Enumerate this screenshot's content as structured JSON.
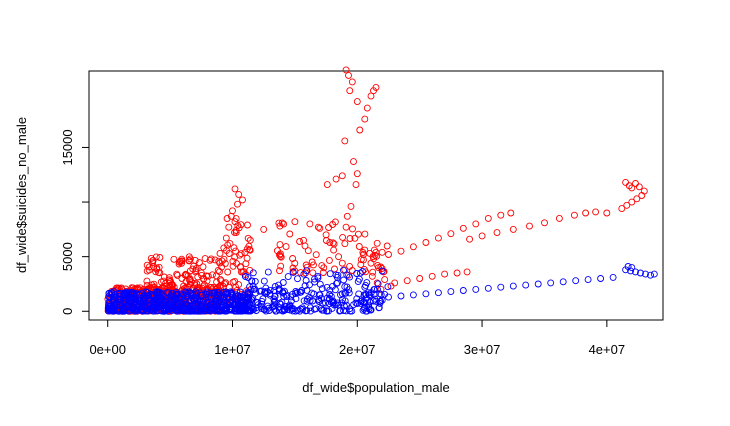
{
  "chart_data": {
    "type": "scatter",
    "title": "",
    "xlabel": "df_wide$population_male",
    "ylabel": "df_wide$suicides_no_male",
    "xlim": [
      -1500000,
      44500000
    ],
    "ylim": [
      -800,
      22000
    ],
    "x_ticks": [
      0,
      10000000,
      20000000,
      30000000,
      40000000
    ],
    "x_tick_labels": [
      "0e+00",
      "1e+07",
      "2e+07",
      "3e+07",
      "4e+07"
    ],
    "y_ticks": [
      0,
      5000,
      15000
    ],
    "y_tick_labels": [
      "0",
      "5000",
      "15000"
    ],
    "y_extra_ticks": [
      10000
    ],
    "grid": false,
    "legend": "none",
    "series": [
      {
        "color": "#ff0000",
        "clusters": [
          {
            "x": [
              0,
              9000000
            ],
            "y": [
              0,
              2200
            ],
            "n": 520
          },
          {
            "x": [
              3000000,
              9500000
            ],
            "y": [
              1500,
              5000
            ],
            "n": 160
          },
          {
            "x": [
              9500000,
              11500000
            ],
            "y": [
              1000,
              8500
            ],
            "n": 60
          },
          {
            "x": [
              13500000,
              22500000
            ],
            "y": [
              3500,
              8200
            ],
            "n": 70
          }
        ],
        "points": [
          {
            "x": 10200000,
            "y": 11200
          },
          {
            "x": 10500000,
            "y": 10700
          },
          {
            "x": 10800000,
            "y": 10200
          },
          {
            "x": 10400000,
            "y": 9800
          },
          {
            "x": 10000000,
            "y": 9200
          },
          {
            "x": 9900000,
            "y": 8700
          },
          {
            "x": 10200000,
            "y": 8200
          },
          {
            "x": 9700000,
            "y": 7700
          },
          {
            "x": 10300000,
            "y": 7200
          },
          {
            "x": 9500000,
            "y": 6700
          },
          {
            "x": 9800000,
            "y": 6200
          },
          {
            "x": 9300000,
            "y": 5800
          },
          {
            "x": 9000000,
            "y": 5300
          },
          {
            "x": 11200000,
            "y": 7900
          },
          {
            "x": 12500000,
            "y": 7500
          },
          {
            "x": 13800000,
            "y": 7800
          },
          {
            "x": 15000000,
            "y": 8200
          },
          {
            "x": 16200000,
            "y": 8000
          },
          {
            "x": 17000000,
            "y": 7600
          },
          {
            "x": 17500000,
            "y": 7000
          },
          {
            "x": 17800000,
            "y": 6300
          },
          {
            "x": 18100000,
            "y": 5600
          },
          {
            "x": 18500000,
            "y": 5000
          },
          {
            "x": 18800000,
            "y": 4400
          },
          {
            "x": 19000000,
            "y": 3800
          },
          {
            "x": 19300000,
            "y": 3300
          },
          {
            "x": 19100000,
            "y": 7700
          },
          {
            "x": 19200000,
            "y": 8700
          },
          {
            "x": 19500000,
            "y": 9600
          },
          {
            "x": 19900000,
            "y": 11600
          },
          {
            "x": 20000000,
            "y": 12600
          },
          {
            "x": 19700000,
            "y": 13700
          },
          {
            "x": 19000000,
            "y": 15600
          },
          {
            "x": 20200000,
            "y": 16600
          },
          {
            "x": 20600000,
            "y": 17600
          },
          {
            "x": 20800000,
            "y": 18600
          },
          {
            "x": 21100000,
            "y": 19700
          },
          {
            "x": 21300000,
            "y": 20200
          },
          {
            "x": 21500000,
            "y": 20500
          },
          {
            "x": 19100000,
            "y": 22100
          },
          {
            "x": 19300000,
            "y": 21600
          },
          {
            "x": 19600000,
            "y": 21000
          },
          {
            "x": 19400000,
            "y": 20200
          },
          {
            "x": 20000000,
            "y": 19200
          },
          {
            "x": 18800000,
            "y": 12400
          },
          {
            "x": 18300000,
            "y": 12100
          },
          {
            "x": 17600000,
            "y": 11600
          },
          {
            "x": 20500000,
            "y": 5200
          },
          {
            "x": 21000000,
            "y": 5300
          },
          {
            "x": 21500000,
            "y": 5400
          },
          {
            "x": 22000000,
            "y": 5400
          },
          {
            "x": 22500000,
            "y": 5200
          },
          {
            "x": 20500000,
            "y": 4700
          },
          {
            "x": 21100000,
            "y": 4400
          },
          {
            "x": 21700000,
            "y": 4000
          },
          {
            "x": 22100000,
            "y": 3600
          },
          {
            "x": 21200000,
            "y": 3200
          },
          {
            "x": 22200000,
            "y": 2900
          },
          {
            "x": 21600000,
            "y": 2600
          },
          {
            "x": 22700000,
            "y": 2300
          },
          {
            "x": 21900000,
            "y": 2000
          },
          {
            "x": 23500000,
            "y": 5500
          },
          {
            "x": 24500000,
            "y": 5900
          },
          {
            "x": 25500000,
            "y": 6300
          },
          {
            "x": 26500000,
            "y": 6700
          },
          {
            "x": 27500000,
            "y": 7100
          },
          {
            "x": 28500000,
            "y": 7600
          },
          {
            "x": 29500000,
            "y": 8000
          },
          {
            "x": 30500000,
            "y": 8500
          },
          {
            "x": 31500000,
            "y": 8800
          },
          {
            "x": 32300000,
            "y": 9000
          },
          {
            "x": 29000000,
            "y": 6600
          },
          {
            "x": 30000000,
            "y": 6900
          },
          {
            "x": 31200000,
            "y": 7200
          },
          {
            "x": 32500000,
            "y": 7500
          },
          {
            "x": 33800000,
            "y": 7800
          },
          {
            "x": 35000000,
            "y": 8100
          },
          {
            "x": 36200000,
            "y": 8500
          },
          {
            "x": 37400000,
            "y": 8800
          },
          {
            "x": 38300000,
            "y": 9000
          },
          {
            "x": 39100000,
            "y": 9100
          },
          {
            "x": 40000000,
            "y": 9000
          },
          {
            "x": 41200000,
            "y": 9400
          },
          {
            "x": 41600000,
            "y": 9700
          },
          {
            "x": 42000000,
            "y": 10000
          },
          {
            "x": 42400000,
            "y": 10300
          },
          {
            "x": 42800000,
            "y": 10600
          },
          {
            "x": 43000000,
            "y": 11000
          },
          {
            "x": 42600000,
            "y": 11400
          },
          {
            "x": 42300000,
            "y": 11700
          },
          {
            "x": 41800000,
            "y": 11500
          },
          {
            "x": 41500000,
            "y": 11800
          },
          {
            "x": 42000000,
            "y": 11300
          },
          {
            "x": 23000000,
            "y": 2600
          },
          {
            "x": 24000000,
            "y": 2800
          },
          {
            "x": 25000000,
            "y": 3000
          },
          {
            "x": 26000000,
            "y": 3200
          },
          {
            "x": 27000000,
            "y": 3400
          },
          {
            "x": 28000000,
            "y": 3500
          },
          {
            "x": 28800000,
            "y": 3600
          }
        ]
      },
      {
        "color": "#0000ff",
        "clusters": [
          {
            "x": [
              0,
              11500000
            ],
            "y": [
              0,
              1800
            ],
            "n": 600
          },
          {
            "x": [
              10500000,
              22000000
            ],
            "y": [
              0,
              1500
            ],
            "n": 160
          },
          {
            "x": [
              11000000,
              22500000
            ],
            "y": [
              1500,
              3800
            ],
            "n": 110
          }
        ],
        "points": [
          {
            "x": 22500000,
            "y": 1300
          },
          {
            "x": 23500000,
            "y": 1400
          },
          {
            "x": 24500000,
            "y": 1500
          },
          {
            "x": 25500000,
            "y": 1600
          },
          {
            "x": 26500000,
            "y": 1700
          },
          {
            "x": 27500000,
            "y": 1800
          },
          {
            "x": 28500000,
            "y": 1900
          },
          {
            "x": 29500000,
            "y": 2000
          },
          {
            "x": 30500000,
            "y": 2100
          },
          {
            "x": 31500000,
            "y": 2200
          },
          {
            "x": 32500000,
            "y": 2300
          },
          {
            "x": 33500000,
            "y": 2400
          },
          {
            "x": 34500000,
            "y": 2500
          },
          {
            "x": 35500000,
            "y": 2600
          },
          {
            "x": 36500000,
            "y": 2700
          },
          {
            "x": 37500000,
            "y": 2800
          },
          {
            "x": 38500000,
            "y": 2900
          },
          {
            "x": 39500000,
            "y": 3000
          },
          {
            "x": 40500000,
            "y": 3100
          },
          {
            "x": 41500000,
            "y": 3800
          },
          {
            "x": 41900000,
            "y": 3700
          },
          {
            "x": 42300000,
            "y": 3600
          },
          {
            "x": 42700000,
            "y": 3500
          },
          {
            "x": 43100000,
            "y": 3400
          },
          {
            "x": 43500000,
            "y": 3300
          },
          {
            "x": 43800000,
            "y": 3400
          },
          {
            "x": 42000000,
            "y": 4000
          },
          {
            "x": 41700000,
            "y": 4100
          },
          {
            "x": 20000000,
            "y": 700
          },
          {
            "x": 20500000,
            "y": 800
          },
          {
            "x": 21000000,
            "y": 850
          },
          {
            "x": 21500000,
            "y": 900
          },
          {
            "x": 22000000,
            "y": 1000
          }
        ]
      }
    ]
  }
}
